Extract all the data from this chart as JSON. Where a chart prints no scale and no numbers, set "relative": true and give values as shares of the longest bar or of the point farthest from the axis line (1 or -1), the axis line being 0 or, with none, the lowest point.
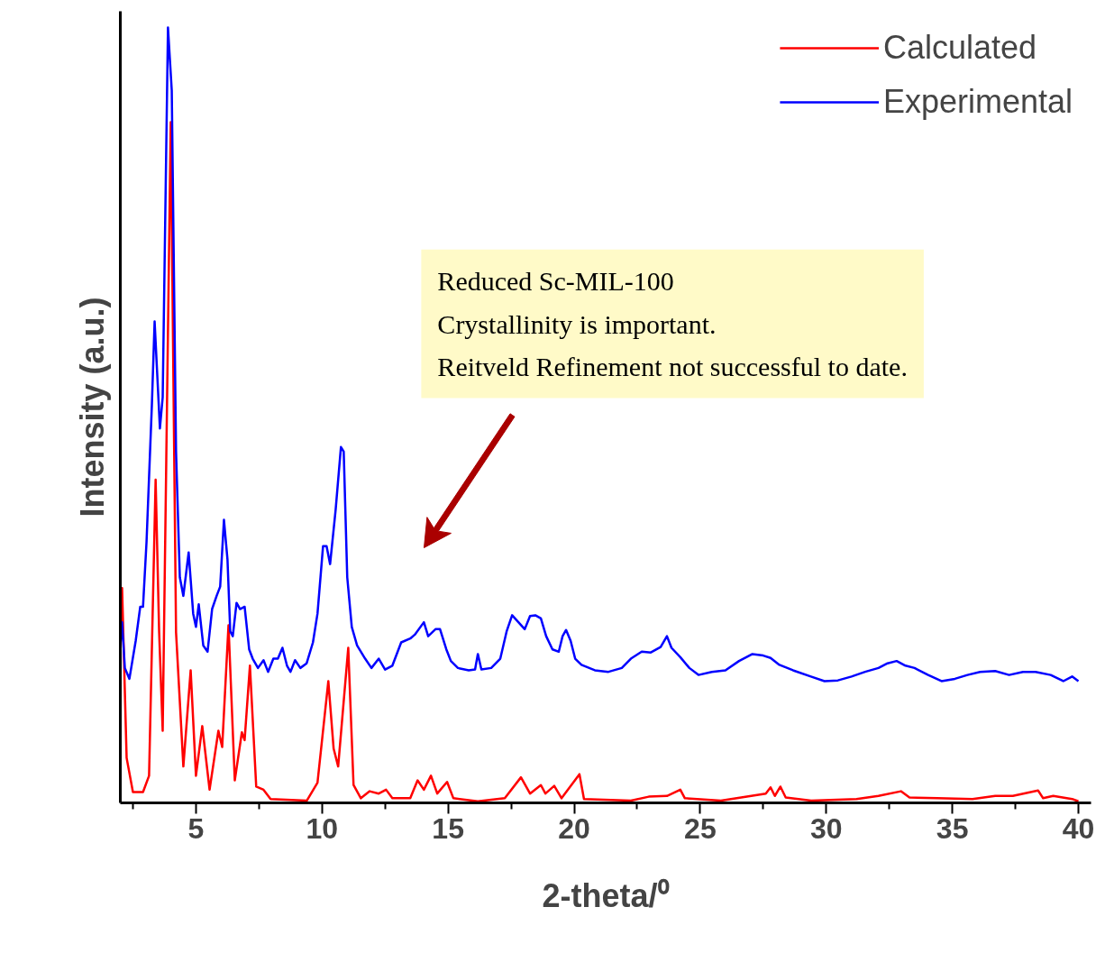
{
  "chart_data": {
    "type": "line",
    "relative": true,
    "xlabel": "2-theta/⁰",
    "ylabel": "Intensity (a.u.)",
    "xlim": [
      2,
      40.5
    ],
    "xticks": [
      5,
      10,
      15,
      20,
      25,
      30,
      35,
      40
    ],
    "legend": "top right",
    "grid": false,
    "line_style": "solid",
    "annotations": [
      "Reduced Sc-MIL-100",
      "Crystallinity is important.",
      "Reitveld Refinement not successful to date."
    ],
    "series": [
      {
        "name": "Calculated",
        "color": "#ff0000",
        "x": [
          2.0,
          2.07,
          2.25,
          2.5,
          2.9,
          3.14,
          3.4,
          3.54,
          3.68,
          4.0,
          4.21,
          4.5,
          4.79,
          5.0,
          5.25,
          5.54,
          5.89,
          6.04,
          6.29,
          6.54,
          6.82,
          6.93,
          7.14,
          7.39,
          7.68,
          7.96,
          9.4,
          9.82,
          10.25,
          10.46,
          10.64,
          11.04,
          11.25,
          11.54,
          11.89,
          12.25,
          12.54,
          12.79,
          13.5,
          13.79,
          14.04,
          14.32,
          14.57,
          14.96,
          15.21,
          16.18,
          17.25,
          17.89,
          18.25,
          18.68,
          18.86,
          19.21,
          19.5,
          20.21,
          20.39,
          22.25,
          22.96,
          23.68,
          24.21,
          24.39,
          25.82,
          27.6,
          27.79,
          27.96,
          28.18,
          28.39,
          29.4,
          31.2,
          32.07,
          32.96,
          33.3,
          34.4,
          35.8,
          36.7,
          37.4,
          38.4,
          38.6,
          39.0,
          39.75,
          40.0
        ],
        "values": [
          0.22,
          0.277,
          0.058,
          0.014,
          0.014,
          0.035,
          0.417,
          0.22,
          0.093,
          0.878,
          0.22,
          0.047,
          0.171,
          0.035,
          0.099,
          0.017,
          0.093,
          0.072,
          0.229,
          0.029,
          0.091,
          0.081,
          0.177,
          0.021,
          0.017,
          0.005,
          0.003,
          0.026,
          0.157,
          0.07,
          0.047,
          0.2,
          0.023,
          0.006,
          0.015,
          0.012,
          0.017,
          0.006,
          0.006,
          0.029,
          0.017,
          0.035,
          0.012,
          0.027,
          0.006,
          0.002,
          0.006,
          0.033,
          0.012,
          0.023,
          0.012,
          0.022,
          0.006,
          0.037,
          0.005,
          0.003,
          0.008,
          0.009,
          0.017,
          0.006,
          0.003,
          0.012,
          0.02,
          0.009,
          0.021,
          0.007,
          0.003,
          0.005,
          0.009,
          0.015,
          0.007,
          0.006,
          0.005,
          0.009,
          0.009,
          0.016,
          0.006,
          0.009,
          0.005,
          0.002
        ]
      },
      {
        "name": "Experimental",
        "color": "#0000ff",
        "x": [
          2.0,
          2.07,
          2.18,
          2.36,
          2.61,
          2.79,
          2.9,
          3.04,
          3.25,
          3.36,
          3.57,
          3.68,
          3.89,
          4.04,
          4.21,
          4.36,
          4.5,
          4.71,
          4.89,
          5.0,
          5.11,
          5.29,
          5.46,
          5.64,
          5.82,
          5.96,
          6.11,
          6.25,
          6.36,
          6.46,
          6.61,
          6.75,
          6.93,
          7.11,
          7.25,
          7.46,
          7.68,
          7.86,
          8.07,
          8.25,
          8.43,
          8.61,
          8.75,
          8.93,
          9.14,
          9.39,
          9.64,
          9.82,
          10.04,
          10.18,
          10.32,
          10.54,
          10.75,
          10.86,
          11.0,
          11.18,
          11.39,
          11.71,
          11.96,
          12.25,
          12.5,
          12.79,
          13.14,
          13.5,
          13.68,
          14.04,
          14.21,
          14.5,
          14.68,
          14.93,
          15.11,
          15.39,
          15.82,
          16.07,
          16.18,
          16.32,
          16.71,
          17.07,
          17.32,
          17.54,
          17.79,
          18.04,
          18.25,
          18.46,
          18.68,
          18.89,
          19.14,
          19.39,
          19.54,
          19.68,
          19.86,
          20.04,
          20.29,
          20.82,
          21.36,
          21.89,
          22.25,
          22.68,
          23.04,
          23.43,
          23.68,
          23.86,
          24.21,
          24.57,
          24.93,
          25.46,
          26.0,
          26.54,
          27.07,
          27.5,
          27.79,
          28.14,
          28.68,
          29.39,
          29.93,
          30.46,
          31.0,
          31.54,
          32.07,
          32.43,
          32.79,
          33.14,
          33.5,
          34.04,
          34.57,
          35.1,
          35.6,
          36.1,
          36.7,
          37.25,
          37.8,
          38.3,
          38.9,
          39.4,
          39.75,
          40.0
        ],
        "values": [
          0.203,
          0.233,
          0.174,
          0.16,
          0.209,
          0.253,
          0.253,
          0.337,
          0.512,
          0.621,
          0.483,
          0.523,
          1.0,
          0.919,
          0.453,
          0.291,
          0.267,
          0.323,
          0.244,
          0.227,
          0.256,
          0.203,
          0.195,
          0.25,
          0.267,
          0.279,
          0.365,
          0.314,
          0.221,
          0.215,
          0.258,
          0.25,
          0.253,
          0.198,
          0.186,
          0.174,
          0.184,
          0.169,
          0.186,
          0.186,
          0.2,
          0.177,
          0.169,
          0.184,
          0.174,
          0.18,
          0.207,
          0.244,
          0.331,
          0.331,
          0.308,
          0.378,
          0.459,
          0.453,
          0.291,
          0.227,
          0.203,
          0.186,
          0.174,
          0.186,
          0.172,
          0.177,
          0.207,
          0.212,
          0.217,
          0.233,
          0.215,
          0.224,
          0.224,
          0.198,
          0.183,
          0.174,
          0.171,
          0.172,
          0.192,
          0.172,
          0.174,
          0.186,
          0.221,
          0.242,
          0.233,
          0.224,
          0.241,
          0.242,
          0.238,
          0.215,
          0.198,
          0.195,
          0.215,
          0.223,
          0.209,
          0.186,
          0.178,
          0.171,
          0.169,
          0.174,
          0.186,
          0.195,
          0.194,
          0.201,
          0.215,
          0.2,
          0.188,
          0.174,
          0.165,
          0.169,
          0.171,
          0.183,
          0.192,
          0.19,
          0.187,
          0.178,
          0.171,
          0.163,
          0.157,
          0.158,
          0.163,
          0.169,
          0.174,
          0.18,
          0.183,
          0.177,
          0.174,
          0.165,
          0.157,
          0.16,
          0.165,
          0.169,
          0.17,
          0.165,
          0.169,
          0.169,
          0.165,
          0.157,
          0.163,
          0.157
        ]
      }
    ]
  }
}
